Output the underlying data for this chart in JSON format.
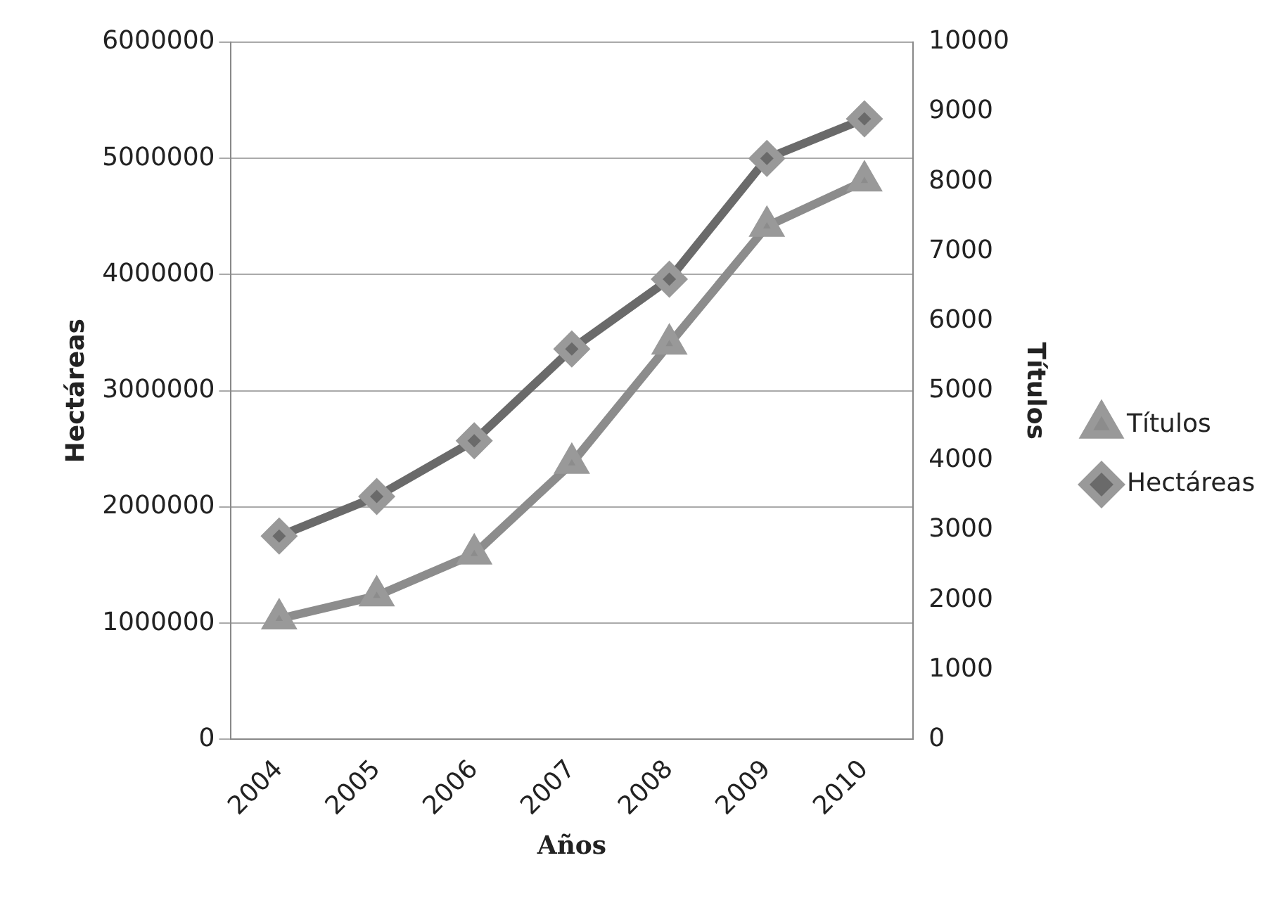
{
  "chart_data": {
    "type": "line",
    "xlabel": "Años",
    "ylabel": "Hectáreas",
    "y2label": "Títulos",
    "categories": [
      "2004",
      "2005",
      "2006",
      "2007",
      "2008",
      "2009",
      "2010"
    ],
    "series": [
      {
        "name": "Títulos",
        "color": "#8c8c8c",
        "axis": "y2",
        "marker": "triangle",
        "values": [
          1730,
          2060,
          2660,
          3960,
          5670,
          7360,
          8010
        ]
      },
      {
        "name": "Hectáreas",
        "color": "#6a6a6a",
        "marker": "diamond",
        "values": [
          1750000,
          2090000,
          2570000,
          3360000,
          3960000,
          5000000,
          5340000
        ]
      }
    ],
    "ylim": [
      0,
      6000000
    ],
    "yticks": [
      0,
      1000000,
      2000000,
      3000000,
      4000000,
      5000000,
      6000000
    ],
    "y2lim": [
      0,
      10000
    ],
    "y2ticks": [
      0,
      1000,
      2000,
      3000,
      4000,
      5000,
      6000,
      7000,
      8000,
      9000,
      10000
    ],
    "grid": "y",
    "legend": "right"
  }
}
